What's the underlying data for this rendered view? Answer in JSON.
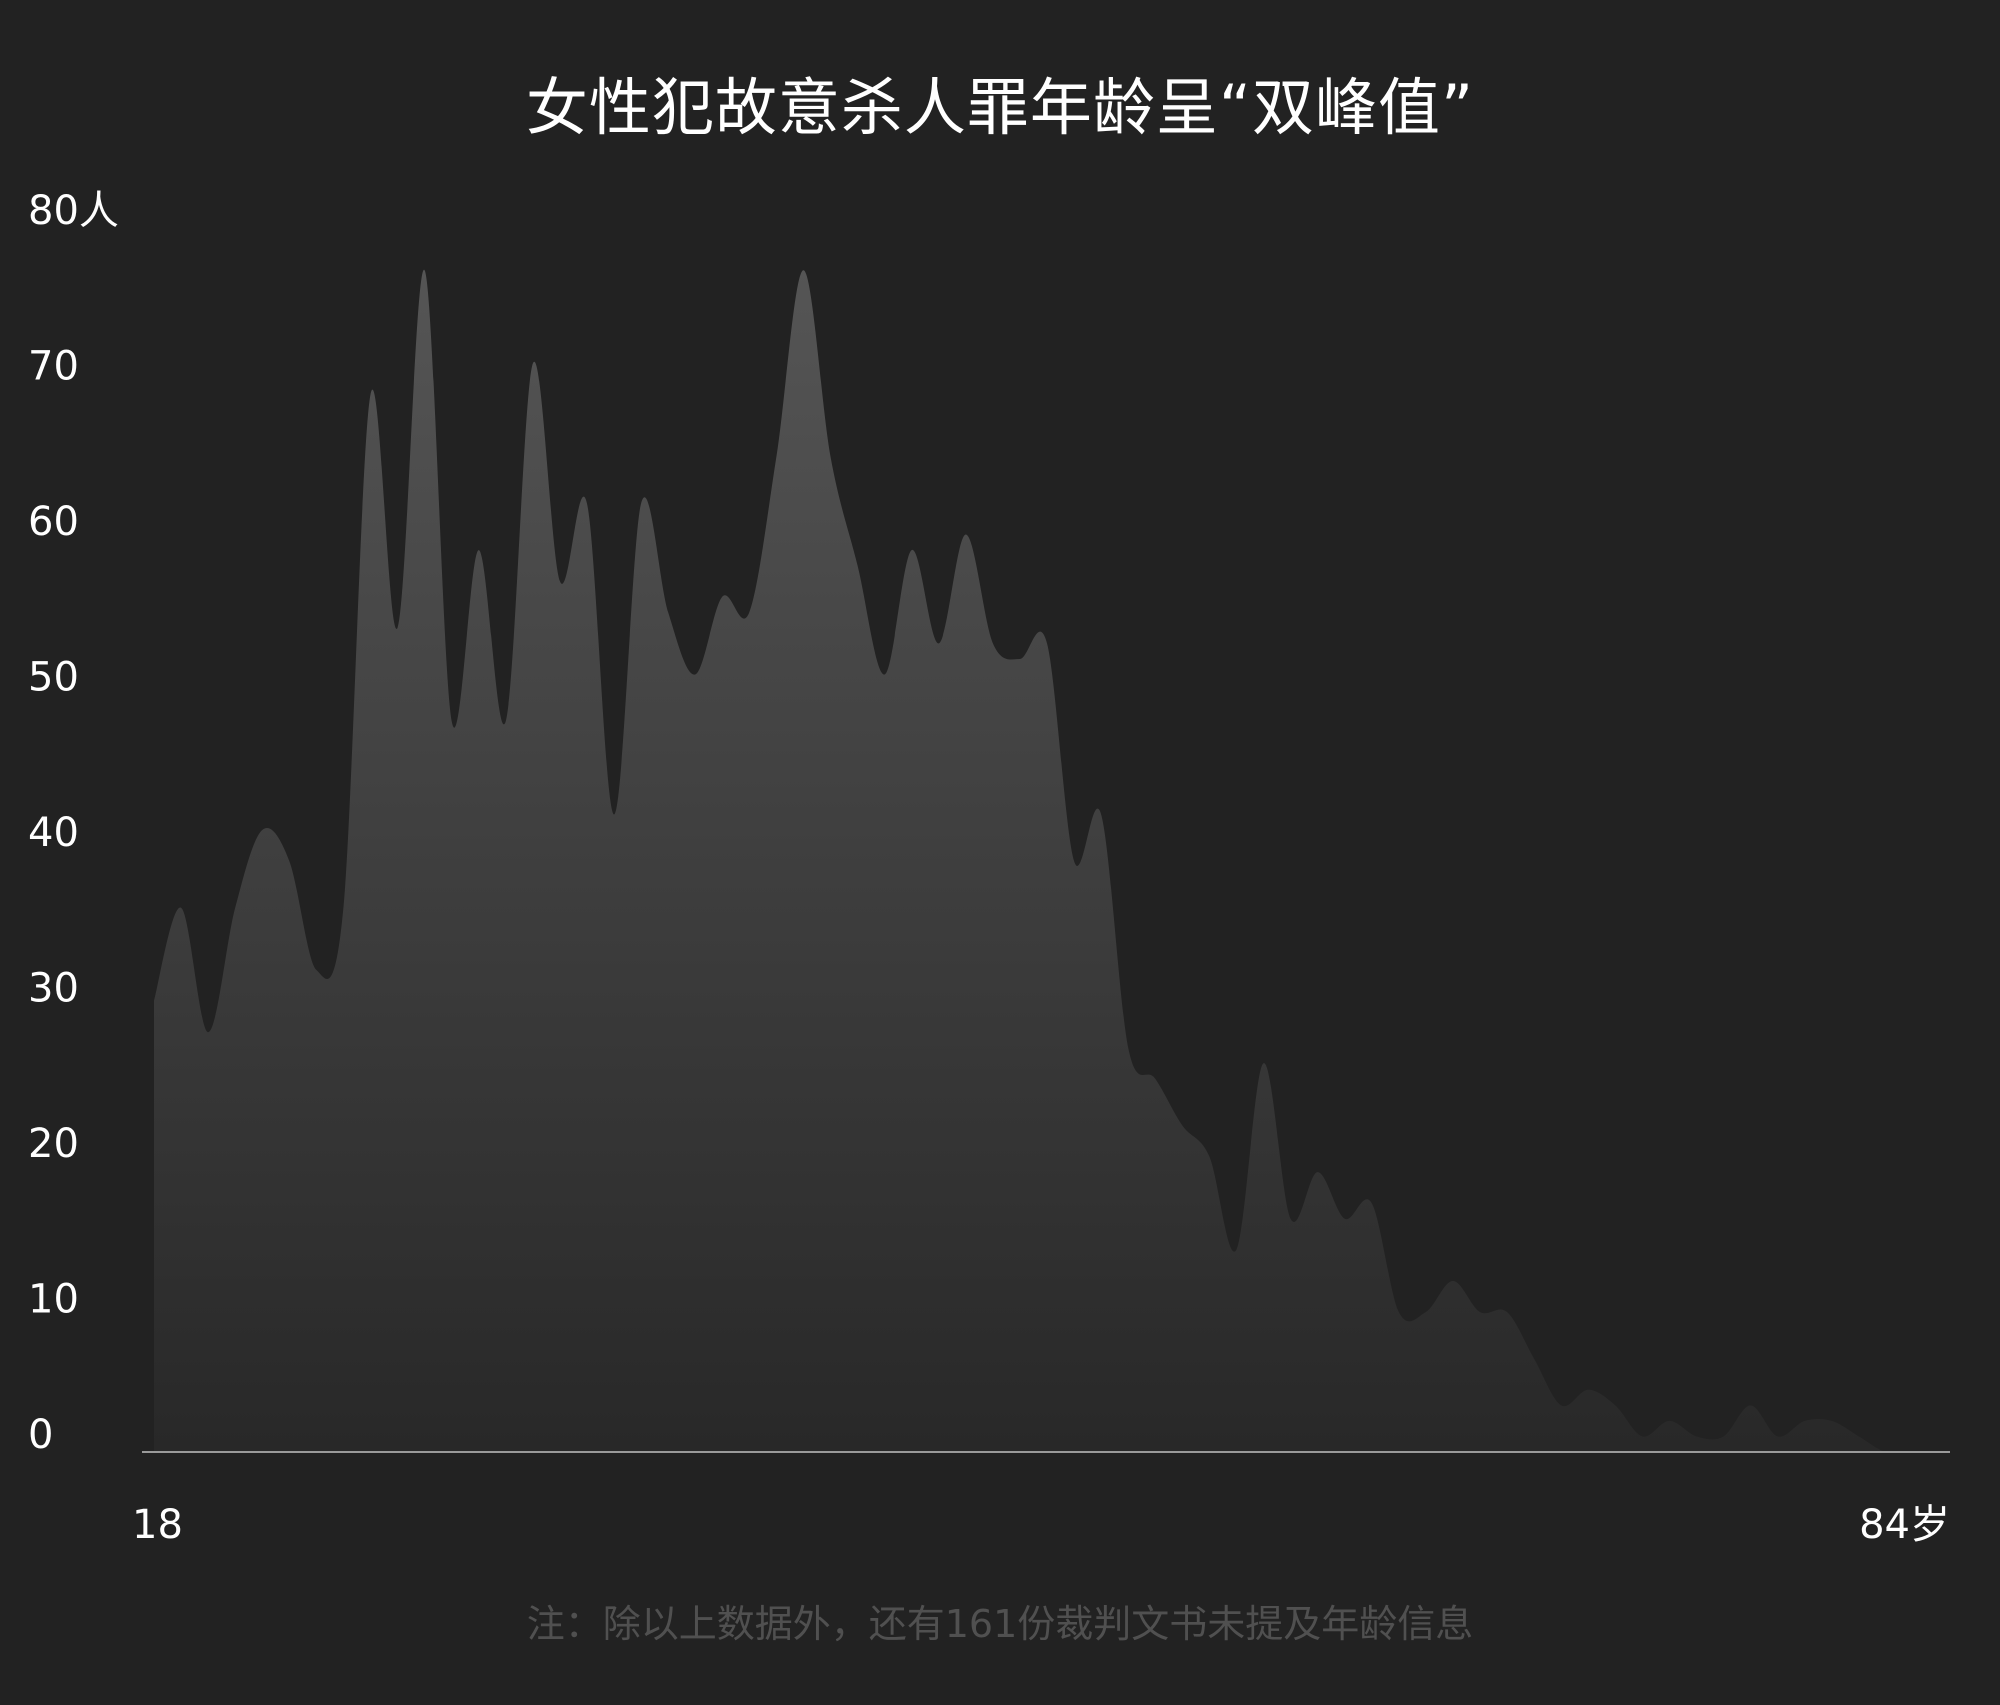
{
  "chart_data": {
    "type": "area",
    "title": "女性犯故意杀人罪年龄呈“双峰值”",
    "note": "注：除以上数据外，还有161份裁判文书未提及年龄信息",
    "y_unit": "人",
    "x_unit": "岁",
    "ylim": [
      0,
      80
    ],
    "xlim": [
      18,
      84
    ],
    "y_ticks": [
      0,
      10,
      20,
      30,
      40,
      50,
      60,
      70,
      80
    ],
    "y_tick_labels": [
      "0",
      "10",
      "20",
      "30",
      "40",
      "50",
      "60",
      "70",
      "80人"
    ],
    "x_tick_labels": [
      "18",
      "84岁"
    ],
    "grid": false,
    "x": [
      18,
      19,
      20,
      21,
      22,
      23,
      24,
      25,
      26,
      27,
      28,
      29,
      30,
      31,
      32,
      33,
      34,
      35,
      36,
      37,
      38,
      39,
      40,
      41,
      42,
      43,
      44,
      45,
      46,
      47,
      48,
      49,
      50,
      51,
      52,
      53,
      54,
      55,
      56,
      57,
      58,
      59,
      60,
      61,
      62,
      63,
      64,
      65,
      66,
      67,
      68,
      69,
      70,
      71,
      72,
      73,
      74,
      75,
      76,
      77,
      78,
      79,
      80,
      81,
      82,
      83,
      84
    ],
    "values": [
      29,
      35,
      27,
      35,
      40,
      38,
      31,
      35,
      68,
      53,
      76,
      47,
      58,
      47,
      70,
      56,
      61,
      41,
      61,
      54,
      50,
      55,
      54,
      64,
      76,
      64,
      57,
      50,
      58,
      52,
      59,
      52,
      51,
      52,
      38,
      41,
      26,
      24,
      21,
      19,
      13,
      25,
      15,
      18,
      15,
      16,
      9,
      9,
      11,
      9,
      9,
      6,
      3,
      4,
      3,
      1,
      2,
      1,
      1,
      3,
      1,
      2,
      2,
      1,
      0,
      0,
      0
    ],
    "colors": {
      "background": "#222222",
      "area_top": "#555555",
      "area_bottom": "#282828",
      "axis": "#9a9a9a",
      "text": "#ffffff",
      "note": "#505050"
    }
  }
}
